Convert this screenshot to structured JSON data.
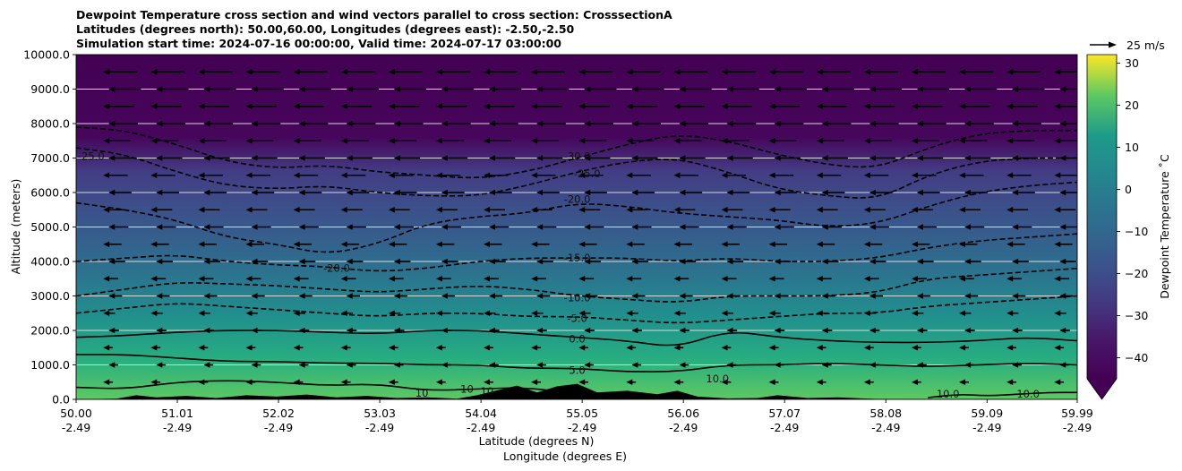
{
  "chart_data": {
    "type": "contour",
    "title_lines": [
      "Dewpoint Temperature cross section and wind vectors parallel to cross section: CrosssectionA",
      "Latitudes (degrees north): 50.00,60.00, Longitudes (degrees east): -2.50,-2.50",
      "Simulation start time: 2024-07-16 00:00:00, Valid time: 2024-07-17 03:00:00"
    ],
    "ylabel": "Altitude (meters)",
    "xlabel_lat": "Latitude (degrees N)",
    "xlabel_lon": "Longitude (degrees E)",
    "xlim": [
      50.0,
      59.99
    ],
    "ylim": [
      0,
      10000
    ],
    "x_ticks": [
      {
        "value": 50.0,
        "lat": "50.00",
        "lon": "-2.49"
      },
      {
        "value": 51.01,
        "lat": "51.01",
        "lon": "-2.49"
      },
      {
        "value": 52.02,
        "lat": "52.02",
        "lon": "-2.49"
      },
      {
        "value": 53.03,
        "lat": "53.03",
        "lon": "-2.49"
      },
      {
        "value": 54.04,
        "lat": "54.04",
        "lon": "-2.49"
      },
      {
        "value": 55.05,
        "lat": "55.05",
        "lon": "-2.49"
      },
      {
        "value": 56.06,
        "lat": "56.06",
        "lon": "-2.49"
      },
      {
        "value": 57.07,
        "lat": "57.07",
        "lon": "-2.49"
      },
      {
        "value": 58.08,
        "lat": "58.08",
        "lon": "-2.49"
      },
      {
        "value": 59.09,
        "lat": "59.09",
        "lon": "-2.49"
      },
      {
        "value": 59.99,
        "lat": "59.99",
        "lon": "-2.49"
      }
    ],
    "y_ticks": [
      {
        "value": 0,
        "label": "0.0"
      },
      {
        "value": 1000,
        "label": "1000.0"
      },
      {
        "value": 2000,
        "label": "2000.0"
      },
      {
        "value": 3000,
        "label": "3000.0"
      },
      {
        "value": 4000,
        "label": "4000.0"
      },
      {
        "value": 5000,
        "label": "5000.0"
      },
      {
        "value": 6000,
        "label": "6000.0"
      },
      {
        "value": 7000,
        "label": "7000.0"
      },
      {
        "value": 8000,
        "label": "8000.0"
      },
      {
        "value": 9000,
        "label": "9000.0"
      },
      {
        "value": 10000,
        "label": "10000.0"
      }
    ],
    "colorbar": {
      "label": "Dewpoint Temperature ˚C",
      "range": [
        -45,
        32
      ],
      "extend": "min",
      "ticks": [
        {
          "value": -40,
          "label": "−40"
        },
        {
          "value": -30,
          "label": "−30"
        },
        {
          "value": -20,
          "label": "−20"
        },
        {
          "value": -10,
          "label": "−10"
        },
        {
          "value": 0,
          "label": "0"
        },
        {
          "value": 10,
          "label": "10"
        },
        {
          "value": 20,
          "label": "20"
        },
        {
          "value": 30,
          "label": "30"
        }
      ]
    },
    "wind_key": {
      "label": "25 m/s",
      "speed": 25
    },
    "contours": [
      {
        "level": -30,
        "style": "dashed",
        "color": "#000000",
        "points": [
          [
            50.0,
            7900
          ],
          [
            50.5,
            7800
          ],
          [
            51.0,
            7400
          ],
          [
            51.5,
            6900
          ],
          [
            52.0,
            6700
          ],
          [
            52.5,
            6800
          ],
          [
            53.0,
            6600
          ],
          [
            53.5,
            6500
          ],
          [
            54.0,
            6400
          ],
          [
            54.5,
            6600
          ],
          [
            55.0,
            7000
          ],
          [
            55.5,
            7400
          ],
          [
            56.0,
            7700
          ],
          [
            56.5,
            7500
          ],
          [
            57.0,
            7100
          ],
          [
            57.5,
            6800
          ],
          [
            58.0,
            6700
          ],
          [
            58.5,
            7300
          ],
          [
            59.0,
            7700
          ],
          [
            59.5,
            7800
          ],
          [
            59.99,
            7800
          ]
        ],
        "labels": [
          {
            "x": 55.0,
            "y": 7050,
            "text": "-30.0"
          }
        ]
      },
      {
        "level": -25,
        "style": "dashed",
        "color": "#000000",
        "points": [
          [
            50.0,
            7300
          ],
          [
            50.5,
            7100
          ],
          [
            51.0,
            6600
          ],
          [
            51.5,
            6200
          ],
          [
            52.0,
            6100
          ],
          [
            52.5,
            6200
          ],
          [
            53.0,
            6000
          ],
          [
            53.5,
            5900
          ],
          [
            54.0,
            5900
          ],
          [
            54.5,
            6200
          ],
          [
            55.0,
            6600
          ],
          [
            55.5,
            6900
          ],
          [
            56.0,
            7000
          ],
          [
            56.5,
            6600
          ],
          [
            57.0,
            6100
          ],
          [
            57.5,
            5900
          ],
          [
            58.0,
            5800
          ],
          [
            58.5,
            6500
          ],
          [
            59.0,
            6900
          ],
          [
            59.5,
            7000
          ],
          [
            59.99,
            7000
          ]
        ],
        "labels": [
          {
            "x": 50.15,
            "y": 7050,
            "text": "-25.0"
          },
          {
            "x": 55.1,
            "y": 6550,
            "text": "-25.0"
          }
        ]
      },
      {
        "level": -20,
        "style": "dashed",
        "color": "#000000",
        "points": [
          [
            50.0,
            5700
          ],
          [
            50.5,
            5500
          ],
          [
            51.0,
            5200
          ],
          [
            51.5,
            4700
          ],
          [
            52.0,
            4500
          ],
          [
            52.5,
            4200
          ],
          [
            53.0,
            4500
          ],
          [
            53.5,
            5100
          ],
          [
            54.0,
            5300
          ],
          [
            54.5,
            5400
          ],
          [
            55.0,
            5700
          ],
          [
            55.5,
            5600
          ],
          [
            56.0,
            5400
          ],
          [
            56.5,
            5300
          ],
          [
            57.0,
            5200
          ],
          [
            57.5,
            5000
          ],
          [
            58.0,
            5100
          ],
          [
            58.5,
            5600
          ],
          [
            59.0,
            6000
          ],
          [
            59.5,
            6200
          ],
          [
            59.99,
            6300
          ]
        ],
        "labels": [
          {
            "x": 52.6,
            "y": 3800,
            "text": "-20.0"
          },
          {
            "x": 55.0,
            "y": 5800,
            "text": "-20.0"
          }
        ]
      },
      {
        "level": -15,
        "style": "dashed",
        "color": "#000000",
        "points": [
          [
            50.0,
            4000
          ],
          [
            50.5,
            4100
          ],
          [
            51.0,
            4200
          ],
          [
            51.5,
            4000
          ],
          [
            52.0,
            3900
          ],
          [
            52.5,
            3850
          ],
          [
            53.0,
            3700
          ],
          [
            53.5,
            3800
          ],
          [
            54.0,
            4000
          ],
          [
            54.5,
            4100
          ],
          [
            55.0,
            4100
          ],
          [
            55.5,
            4100
          ],
          [
            56.0,
            4000
          ],
          [
            56.5,
            4100
          ],
          [
            57.0,
            4000
          ],
          [
            57.5,
            4000
          ],
          [
            58.0,
            4100
          ],
          [
            58.5,
            4400
          ],
          [
            59.0,
            4600
          ],
          [
            59.5,
            4700
          ],
          [
            59.99,
            4800
          ]
        ],
        "labels": [
          {
            "x": 55.0,
            "y": 4100,
            "text": "-15.0"
          }
        ]
      },
      {
        "level": -10,
        "style": "dashed",
        "color": "#000000",
        "points": [
          [
            50.0,
            3000
          ],
          [
            50.5,
            3200
          ],
          [
            51.0,
            3400
          ],
          [
            51.5,
            3350
          ],
          [
            52.0,
            3300
          ],
          [
            52.5,
            3200
          ],
          [
            53.0,
            3100
          ],
          [
            53.5,
            3200
          ],
          [
            54.0,
            3300
          ],
          [
            54.5,
            3200
          ],
          [
            55.0,
            3000
          ],
          [
            55.5,
            2900
          ],
          [
            56.0,
            2800
          ],
          [
            56.5,
            3000
          ],
          [
            57.0,
            3000
          ],
          [
            57.5,
            3000
          ],
          [
            58.0,
            3100
          ],
          [
            58.5,
            3500
          ],
          [
            59.0,
            3600
          ],
          [
            59.5,
            3700
          ],
          [
            59.99,
            3800
          ]
        ],
        "labels": [
          {
            "x": 55.0,
            "y": 2950,
            "text": "-10.0"
          }
        ]
      },
      {
        "level": -5,
        "style": "dashed",
        "color": "#000000",
        "points": [
          [
            50.0,
            2500
          ],
          [
            50.5,
            2650
          ],
          [
            51.0,
            2800
          ],
          [
            51.5,
            2700
          ],
          [
            52.0,
            2600
          ],
          [
            52.5,
            2500
          ],
          [
            53.0,
            2400
          ],
          [
            53.5,
            2500
          ],
          [
            54.0,
            2500
          ],
          [
            54.5,
            2400
          ],
          [
            55.0,
            2400
          ],
          [
            55.5,
            2300
          ],
          [
            56.0,
            2200
          ],
          [
            56.5,
            2300
          ],
          [
            57.0,
            2400
          ],
          [
            57.5,
            2500
          ],
          [
            58.0,
            2500
          ],
          [
            58.5,
            2700
          ],
          [
            59.0,
            2800
          ],
          [
            59.5,
            2900
          ],
          [
            59.99,
            3000
          ]
        ],
        "labels": [
          {
            "x": 55.0,
            "y": 2350,
            "text": "-5.0"
          }
        ]
      },
      {
        "level": 0,
        "style": "solid",
        "color": "#000000",
        "points": [
          [
            50.0,
            1800
          ],
          [
            50.5,
            1850
          ],
          [
            51.0,
            1950
          ],
          [
            51.5,
            2000
          ],
          [
            52.0,
            2000
          ],
          [
            52.5,
            1950
          ],
          [
            53.0,
            1900
          ],
          [
            53.5,
            2000
          ],
          [
            54.0,
            2000
          ],
          [
            54.5,
            1900
          ],
          [
            55.0,
            1800
          ],
          [
            55.5,
            1700
          ],
          [
            56.0,
            1500
          ],
          [
            56.5,
            2000
          ],
          [
            57.0,
            1800
          ],
          [
            57.5,
            1700
          ],
          [
            58.0,
            1650
          ],
          [
            58.5,
            1650
          ],
          [
            59.0,
            1700
          ],
          [
            59.5,
            1800
          ],
          [
            59.99,
            1700
          ]
        ],
        "labels": [
          {
            "x": 55.0,
            "y": 1750,
            "text": "0.0"
          }
        ]
      },
      {
        "level": 5,
        "style": "solid",
        "color": "#000000",
        "points": [
          [
            50.0,
            1300
          ],
          [
            50.5,
            1300
          ],
          [
            51.0,
            1200
          ],
          [
            51.5,
            1100
          ],
          [
            52.0,
            1100
          ],
          [
            52.5,
            1050
          ],
          [
            53.0,
            1050
          ],
          [
            53.5,
            1000
          ],
          [
            54.0,
            1000
          ],
          [
            54.5,
            900
          ],
          [
            55.0,
            900
          ],
          [
            55.5,
            800
          ],
          [
            56.0,
            800
          ],
          [
            56.5,
            1000
          ],
          [
            57.0,
            1000
          ],
          [
            57.5,
            1050
          ],
          [
            58.0,
            1000
          ],
          [
            58.5,
            950
          ],
          [
            59.0,
            1000
          ],
          [
            59.5,
            1050
          ],
          [
            59.99,
            1000
          ]
        ],
        "labels": [
          {
            "x": 55.0,
            "y": 850,
            "text": "5.0"
          }
        ]
      },
      {
        "level": 10,
        "style": "solid",
        "color": "#000000",
        "points": [
          [
            50.0,
            350
          ],
          [
            50.5,
            300
          ],
          [
            51.0,
            500
          ],
          [
            51.5,
            550
          ],
          [
            52.0,
            500
          ],
          [
            52.5,
            400
          ],
          [
            53.0,
            450
          ],
          [
            53.5,
            250
          ],
          [
            54.0,
            300
          ],
          [
            54.5,
            350
          ],
          [
            55.0,
            150
          ],
          [
            55.5,
            100
          ],
          [
            56.0,
            0
          ]
        ],
        "labels": [
          {
            "x": 53.45,
            "y": 180,
            "text": "10"
          },
          {
            "x": 53.9,
            "y": 300,
            "text": "10"
          },
          {
            "x": 54.1,
            "y": 230,
            "text": "10"
          },
          {
            "x": 56.4,
            "y": 600,
            "text": "10.0"
          },
          {
            "x": 58.7,
            "y": 150,
            "text": "10.0"
          },
          {
            "x": 59.5,
            "y": 150,
            "text": "10.0"
          }
        ]
      },
      {
        "level": 10,
        "style": "solid",
        "color": "#000000",
        "points": [
          [
            58.5,
            50
          ],
          [
            58.8,
            150
          ],
          [
            59.1,
            100
          ],
          [
            59.4,
            150
          ],
          [
            59.7,
            200
          ],
          [
            59.99,
            200
          ]
        ],
        "labels": []
      }
    ],
    "terrain": [
      [
        50.0,
        0
      ],
      [
        50.4,
        20
      ],
      [
        50.6,
        120
      ],
      [
        50.8,
        60
      ],
      [
        51.1,
        100
      ],
      [
        51.4,
        40
      ],
      [
        51.7,
        120
      ],
      [
        52.0,
        80
      ],
      [
        52.3,
        140
      ],
      [
        52.6,
        60
      ],
      [
        52.9,
        100
      ],
      [
        53.2,
        40
      ],
      [
        53.5,
        60
      ],
      [
        53.8,
        20
      ],
      [
        54.0,
        120
      ],
      [
        54.2,
        260
      ],
      [
        54.4,
        400
      ],
      [
        54.6,
        200
      ],
      [
        54.8,
        380
      ],
      [
        55.0,
        450
      ],
      [
        55.2,
        200
      ],
      [
        55.5,
        250
      ],
      [
        55.8,
        150
      ],
      [
        56.0,
        250
      ],
      [
        56.2,
        80
      ],
      [
        56.5,
        30
      ],
      [
        56.8,
        40
      ],
      [
        57.0,
        120
      ],
      [
        57.3,
        40
      ],
      [
        57.6,
        60
      ],
      [
        58.0,
        10
      ],
      [
        58.5,
        0
      ],
      [
        59.99,
        0
      ]
    ]
  }
}
